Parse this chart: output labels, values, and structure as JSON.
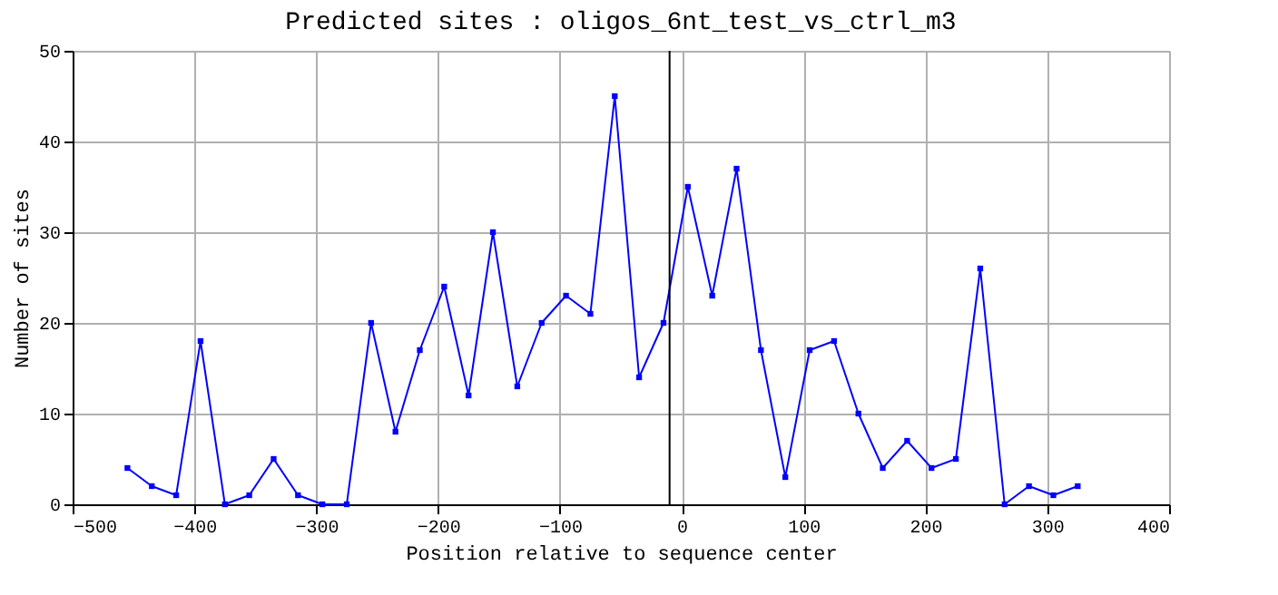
{
  "chart_data": {
    "type": "line",
    "title": "Predicted sites : oligos_6nt_test_vs_ctrl_m3",
    "xlabel": "Position relative to sequence center",
    "ylabel": "Number of sites",
    "x": [
      -455,
      -435,
      -415,
      -395,
      -375,
      -355,
      -335,
      -315,
      -295,
      -275,
      -255,
      -235,
      -215,
      -195,
      -175,
      -155,
      -135,
      -115,
      -95,
      -75,
      -55,
      -35,
      -15,
      5,
      25,
      45,
      65,
      85,
      105,
      125,
      145,
      165,
      185,
      205,
      225,
      245,
      265,
      285,
      305,
      325
    ],
    "series": [
      {
        "color": "#0000ff",
        "values": [
          4,
          2,
          1,
          18,
          0,
          1,
          5,
          1,
          0,
          0,
          20,
          8,
          17,
          24,
          12,
          30,
          13,
          20,
          23,
          21,
          45,
          14,
          20,
          35,
          23,
          37,
          17,
          3,
          17,
          18,
          10,
          4,
          7,
          4,
          5,
          26,
          0,
          2,
          1,
          2
        ]
      }
    ],
    "xlim": [
      -500,
      400
    ],
    "xticks": [
      -500,
      -400,
      -300,
      -200,
      -100,
      0,
      100,
      200,
      300,
      400
    ],
    "ylim": [
      0,
      50
    ],
    "yticks": [
      0,
      10,
      20,
      30,
      40,
      50
    ],
    "ref_lines": [
      {
        "axis": "x",
        "value": -10,
        "color": "#000000"
      }
    ],
    "grid": true,
    "marker": "square",
    "line_style": "solid"
  }
}
